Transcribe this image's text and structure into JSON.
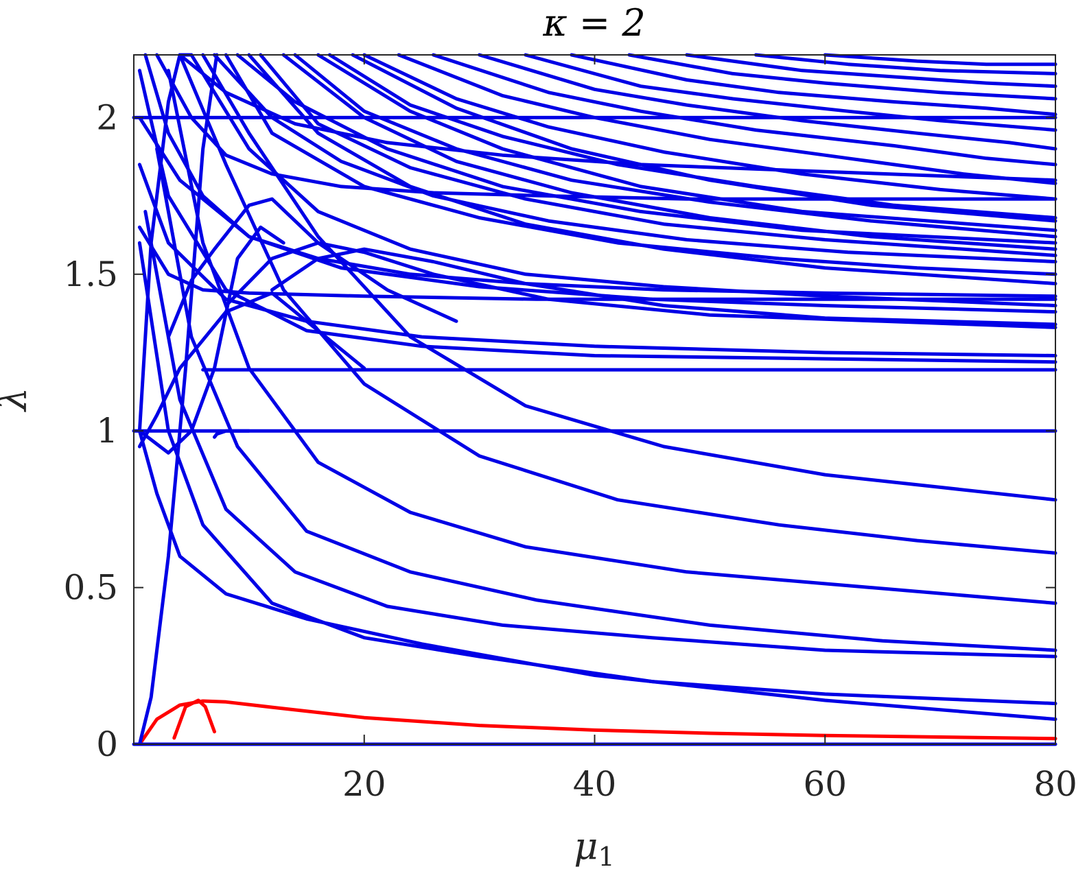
{
  "chart_data": {
    "type": "line",
    "title": "κ = 2",
    "xlabel": "μ1",
    "xlabel_main": "μ",
    "xlabel_sub": "1",
    "ylabel": "λ",
    "xlim": [
      0,
      80
    ],
    "ylim": [
      0,
      2.2
    ],
    "xticks": [
      20,
      40,
      60,
      80
    ],
    "yticks": [
      0,
      0.5,
      1,
      1.5,
      2
    ],
    "xtick_labels": [
      "20",
      "40",
      "60",
      "80"
    ],
    "ytick_labels": [
      "0",
      "0.5",
      "1",
      "1.5",
      "2"
    ],
    "grid": false,
    "colors": {
      "unstable": "#ff0000",
      "stable": "#0000e6",
      "axes": "#262626"
    },
    "series_groups": [
      {
        "color": "unstable",
        "curves": [
          {
            "x": [
              0.5,
              2,
              4,
              6,
              8,
              12,
              20,
              30,
              40,
              50,
              60,
              70,
              80
            ],
            "y": [
              0.0,
              0.08,
              0.125,
              0.138,
              0.135,
              0.118,
              0.085,
              0.06,
              0.045,
              0.035,
              0.028,
              0.023,
              0.018
            ]
          },
          {
            "x": [
              3.5,
              4.5,
              5.6,
              6.2,
              7.0
            ],
            "y": [
              0.02,
              0.12,
              0.14,
              0.12,
              0.04
            ]
          }
        ]
      },
      {
        "color": "stable",
        "curves": [
          {
            "x": [
              0,
              80
            ],
            "y": [
              0.0,
              0.0
            ]
          },
          {
            "x": [
              0,
              80
            ],
            "y": [
              1.0,
              1.0
            ]
          },
          {
            "x": [
              0,
              80
            ],
            "y": [
              2.0,
              2.0
            ]
          },
          {
            "x": [
              6,
              80
            ],
            "y": [
              1.195,
              1.195
            ]
          },
          {
            "x": [
              0.5,
              2,
              4,
              8,
              15,
              25,
              40,
              60,
              80
            ],
            "y": [
              1.0,
              0.8,
              0.6,
              0.48,
              0.4,
              0.32,
              0.22,
              0.14,
              0.08
            ]
          },
          {
            "x": [
              0.5,
              3,
              6,
              12,
              20,
              30,
              45,
              60,
              80
            ],
            "y": [
              1.6,
              1.0,
              0.7,
              0.45,
              0.34,
              0.28,
              0.2,
              0.16,
              0.13
            ]
          },
          {
            "x": [
              1,
              4,
              8,
              14,
              22,
              32,
              45,
              60,
              80
            ],
            "y": [
              1.7,
              1.1,
              0.75,
              0.55,
              0.44,
              0.38,
              0.34,
              0.3,
              0.28
            ]
          },
          {
            "x": [
              2,
              5,
              9,
              15,
              24,
              35,
              50,
              65,
              80
            ],
            "y": [
              1.9,
              1.3,
              0.95,
              0.68,
              0.55,
              0.46,
              0.38,
              0.33,
              0.3
            ]
          },
          {
            "x": [
              3,
              6,
              10,
              16,
              24,
              34,
              48,
              64,
              80
            ],
            "y": [
              2.15,
              1.6,
              1.2,
              0.9,
              0.74,
              0.63,
              0.55,
              0.5,
              0.45
            ]
          },
          {
            "x": [
              4,
              8,
              13,
              20,
              30,
              42,
              56,
              68,
              80
            ],
            "y": [
              2.2,
              1.85,
              1.45,
              1.15,
              0.92,
              0.78,
              0.7,
              0.65,
              0.61
            ]
          },
          {
            "x": [
              6,
              10,
              16,
              24,
              34,
              46,
              60,
              70,
              80
            ],
            "y": [
              2.2,
              1.95,
              1.62,
              1.3,
              1.08,
              0.95,
              0.86,
              0.82,
              0.78
            ]
          },
          {
            "x": [
              0.5,
              2,
              4,
              8,
              12,
              16,
              20
            ],
            "y": [
              0.95,
              1.05,
              1.2,
              1.38,
              1.44,
              1.32,
              1.2
            ]
          },
          {
            "x": [
              0.5,
              3,
              5,
              7,
              9,
              11,
              13
            ],
            "y": [
              1.0,
              0.93,
              1.0,
              1.2,
              1.55,
              1.65,
              1.6
            ]
          },
          {
            "x": [
              3,
              5,
              7,
              10,
              12,
              16,
              22,
              28
            ],
            "y": [
              1.3,
              1.48,
              1.58,
              1.72,
              1.74,
              1.6,
              1.45,
              1.35
            ]
          },
          {
            "x": [
              8,
              12,
              16,
              20,
              26,
              36,
              50,
              65,
              80
            ],
            "y": [
              1.4,
              1.55,
              1.6,
              1.57,
              1.5,
              1.42,
              1.37,
              1.35,
              1.33
            ]
          },
          {
            "x": [
              12,
              16,
              20,
              26,
              34,
              46,
              60,
              80
            ],
            "y": [
              1.45,
              1.55,
              1.58,
              1.54,
              1.47,
              1.4,
              1.36,
              1.34
            ]
          },
          {
            "x": [
              0.5,
              3,
              6,
              10,
              20,
              35,
              50,
              65,
              80
            ],
            "y": [
              1.65,
              1.5,
              1.45,
              1.44,
              1.43,
              1.42,
              1.42,
              1.42,
              1.42
            ]
          },
          {
            "x": [
              0.5,
              3,
              8,
              15,
              25,
              40,
              60,
              80
            ],
            "y": [
              1.85,
              1.6,
              1.42,
              1.35,
              1.3,
              1.27,
              1.25,
              1.24
            ]
          },
          {
            "x": [
              0.5,
              3,
              8,
              15,
              25,
              40,
              60,
              80
            ],
            "y": [
              2.15,
              1.75,
              1.45,
              1.32,
              1.27,
              1.24,
              1.23,
              1.22
            ]
          },
          {
            "x": [
              0.5,
              4,
              10,
              18,
              30,
              45,
              60,
              80
            ],
            "y": [
              2.0,
              1.8,
              1.62,
              1.52,
              1.46,
              1.42,
              1.4,
              1.38
            ]
          },
          {
            "x": [
              5,
              10,
              16,
              24,
              34,
              46,
              60,
              80
            ],
            "y": [
              2.2,
              1.9,
              1.7,
              1.58,
              1.5,
              1.46,
              1.43,
              1.4
            ]
          },
          {
            "x": [
              8,
              12,
              20,
              30,
              42,
              56,
              68,
              80
            ],
            "y": [
              2.2,
              1.95,
              1.78,
              1.68,
              1.6,
              1.55,
              1.52,
              1.5
            ]
          },
          {
            "x": [
              11,
              16,
              24,
              34,
              46,
              60,
              80
            ],
            "y": [
              2.2,
              1.98,
              1.84,
              1.74,
              1.66,
              1.61,
              1.56
            ]
          },
          {
            "x": [
              14,
              20,
              28,
              38,
              50,
              64,
              80
            ],
            "y": [
              2.2,
              2.02,
              1.9,
              1.8,
              1.73,
              1.67,
              1.62
            ]
          },
          {
            "x": [
              17,
              24,
              32,
              42,
              54,
              66,
              80
            ],
            "y": [
              2.2,
              2.04,
              1.94,
              1.85,
              1.78,
              1.72,
              1.68
            ]
          },
          {
            "x": [
              20,
              28,
              36,
              46,
              58,
              70,
              80
            ],
            "y": [
              2.2,
              2.06,
              1.97,
              1.89,
              1.82,
              1.77,
              1.74
            ]
          },
          {
            "x": [
              23,
              32,
              40,
              50,
              62,
              72,
              80
            ],
            "y": [
              2.2,
              2.07,
              2.0,
              1.93,
              1.87,
              1.82,
              1.79
            ]
          },
          {
            "x": [
              26,
              36,
              44,
              54,
              66,
              74,
              80
            ],
            "y": [
              2.2,
              2.08,
              2.02,
              1.96,
              1.91,
              1.87,
              1.85
            ]
          },
          {
            "x": [
              30,
              40,
              48,
              58,
              68,
              76,
              80
            ],
            "y": [
              2.2,
              2.09,
              2.04,
              1.99,
              1.95,
              1.92,
              1.9
            ]
          },
          {
            "x": [
              34,
              44,
              52,
              62,
              70,
              80
            ],
            "y": [
              2.2,
              2.1,
              2.06,
              2.02,
              1.99,
              1.96
            ]
          },
          {
            "x": [
              38,
              48,
              56,
              66,
              74,
              80
            ],
            "y": [
              2.2,
              2.12,
              2.08,
              2.05,
              2.03,
              2.01
            ]
          },
          {
            "x": [
              43,
              52,
              60,
              70,
              80
            ],
            "y": [
              2.2,
              2.14,
              2.11,
              2.08,
              2.06
            ]
          },
          {
            "x": [
              48,
              58,
              66,
              74,
              80
            ],
            "y": [
              2.2,
              2.15,
              2.13,
              2.11,
              2.1
            ]
          },
          {
            "x": [
              54,
              62,
              70,
              80
            ],
            "y": [
              2.2,
              2.17,
              2.15,
              2.14
            ]
          },
          {
            "x": [
              60,
              68,
              74,
              80
            ],
            "y": [
              2.2,
              2.18,
              2.17,
              2.17
            ]
          },
          {
            "x": [
              2,
              5,
              8,
              12,
              18,
              26,
              36,
              48,
              62,
              80
            ],
            "y": [
              2.2,
              2.0,
              1.88,
              1.82,
              1.78,
              1.76,
              1.75,
              1.74,
              1.74,
              1.74
            ]
          },
          {
            "x": [
              4,
              8,
              14,
              22,
              32,
              44,
              58,
              80
            ],
            "y": [
              2.2,
              2.08,
              1.98,
              1.92,
              1.88,
              1.85,
              1.83,
              1.8
            ]
          },
          {
            "x": [
              1,
              3,
              6,
              10,
              16,
              24,
              34,
              46,
              60,
              80
            ],
            "y": [
              2.2,
              1.95,
              1.75,
              1.62,
              1.55,
              1.5,
              1.47,
              1.45,
              1.44,
              1.43
            ]
          },
          {
            "x": [
              7,
              12,
              18,
              26,
              36,
              48,
              62,
              80
            ],
            "y": [
              2.2,
              2.0,
              1.86,
              1.75,
              1.67,
              1.61,
              1.57,
              1.54
            ]
          },
          {
            "x": [
              9,
              14,
              22,
              32,
              44,
              58,
              80
            ],
            "y": [
              2.2,
              2.05,
              1.9,
              1.78,
              1.7,
              1.64,
              1.6
            ]
          },
          {
            "x": [
              13,
              20,
              28,
              38,
              50,
              64,
              80
            ],
            "y": [
              2.2,
              2.0,
              1.86,
              1.76,
              1.68,
              1.62,
              1.58
            ]
          },
          {
            "x": [
              16,
              24,
              32,
              44,
              58,
              80
            ],
            "y": [
              2.2,
              2.02,
              1.9,
              1.78,
              1.7,
              1.64
            ]
          },
          {
            "x": [
              19,
              28,
              38,
              50,
              64,
              80
            ],
            "y": [
              2.2,
              2.03,
              1.9,
              1.8,
              1.72,
              1.67
            ]
          },
          {
            "x": [
              10,
              16,
              24,
              34,
              46,
              60,
              80
            ],
            "y": [
              2.2,
              1.95,
              1.78,
              1.66,
              1.58,
              1.52,
              1.47
            ]
          },
          {
            "x": [
              0.5,
              1.5,
              3,
              4,
              5
            ],
            "y": [
              1.0,
              1.6,
              2.05,
              2.2,
              2.2
            ]
          },
          {
            "x": [
              0.5,
              1.5,
              3,
              4.5,
              6,
              7.2
            ],
            "y": [
              0.0,
              0.15,
              0.6,
              1.2,
              1.9,
              2.2
            ]
          },
          {
            "x": [
              7,
              7.2,
              8,
              9,
              10
            ],
            "y": [
              0.98,
              0.99,
              1.0,
              1.0,
              1.0
            ]
          }
        ]
      }
    ]
  }
}
